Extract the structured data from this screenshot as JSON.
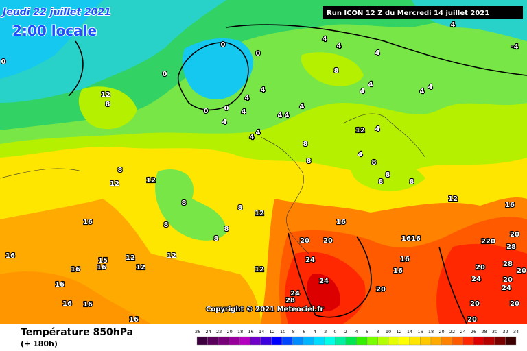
{
  "header": {
    "date": "Jeudi 22 juillet 2021",
    "time": "2:00 locale",
    "run": "Run ICON 12 Z du Mercredi 14 juillet 2021"
  },
  "copyright": "Copyright © 2021 Meteociel.fr",
  "footer": {
    "title": "Température 850hPa",
    "lead": "(+ 180h)"
  },
  "colorbar": {
    "ticks": [
      -26,
      -24,
      -22,
      -20,
      -18,
      -16,
      -14,
      -12,
      -10,
      -8,
      -6,
      -4,
      -2,
      0,
      2,
      4,
      6,
      8,
      10,
      12,
      14,
      16,
      18,
      20,
      22,
      24,
      26,
      28,
      30,
      32,
      34
    ],
    "colors": [
      "#3c003c",
      "#5a005a",
      "#780078",
      "#96009b",
      "#b400be",
      "#6e00c8",
      "#3c00dc",
      "#0000ff",
      "#0046ff",
      "#008cff",
      "#00b4ff",
      "#00dcff",
      "#00ffe6",
      "#00f0a0",
      "#00e650",
      "#32f000",
      "#78ff00",
      "#b4ff00",
      "#e6ff00",
      "#ffff00",
      "#ffe600",
      "#ffc800",
      "#ffaa00",
      "#ff8200",
      "#ff5a00",
      "#ff2800",
      "#dc0000",
      "#b40000",
      "#780000",
      "#3c0000"
    ]
  },
  "map_labels": [
    0,
    0,
    0,
    0,
    0,
    0,
    4,
    4,
    4,
    8,
    4,
    4,
    4,
    4,
    4,
    4,
    4,
    4,
    4,
    4,
    8,
    4,
    12,
    4,
    4,
    8,
    8,
    8,
    8,
    8,
    12,
    8,
    8,
    12,
    12,
    8,
    8,
    8,
    8,
    8,
    12,
    16,
    16,
    16,
    15,
    16,
    12,
    12,
    12,
    12,
    16,
    20,
    20,
    24,
    24,
    24,
    28,
    20,
    16,
    16,
    16,
    16,
    12,
    16,
    4,
    4,
    20,
    20,
    20,
    20,
    28,
    20,
    24,
    20,
    24,
    20,
    20,
    20,
    4,
    -4,
    28,
    16,
    16,
    16,
    16
  ]
}
